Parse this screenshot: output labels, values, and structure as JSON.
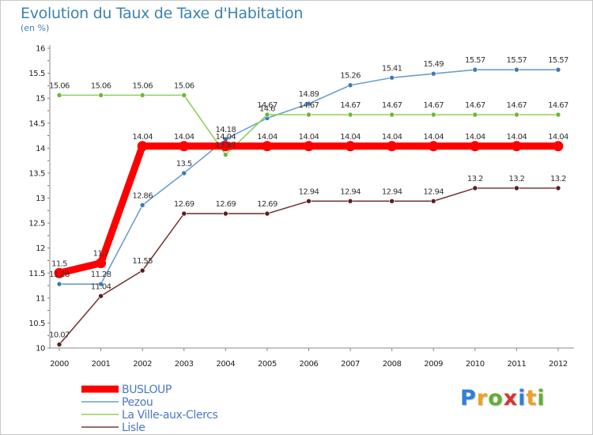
{
  "page": {
    "title": "Evolution du Taux de Taxe d'Habitation",
    "subtitle": "(en %)"
  },
  "chart_data": {
    "type": "line",
    "x": [
      "2000",
      "2001",
      "2002",
      "2003",
      "2004",
      "2005",
      "2006",
      "2007",
      "2008",
      "2009",
      "2010",
      "2011",
      "2012"
    ],
    "ylim": [
      10,
      16
    ],
    "yticks": [
      "10",
      "10.5",
      "11",
      "11.5",
      "12",
      "12.5",
      "13",
      "13.5",
      "14",
      "14.5",
      "15",
      "15.5",
      "16"
    ],
    "grid": false,
    "legend_placement": "bottom-left",
    "series": [
      {
        "name": "Pezou",
        "color": "#6a9fd0",
        "marker": "#3a7ab8",
        "values": [
          11.28,
          11.28,
          12.86,
          13.5,
          14.18,
          14.6,
          14.89,
          15.26,
          15.41,
          15.49,
          15.57,
          15.57,
          15.57
        ],
        "labels": [
          "11.28",
          "11.28",
          "12.86",
          "13.5",
          "14.18",
          "14.6",
          "14.89",
          "15.26",
          "15.41",
          "15.49",
          "15.57",
          "15.57",
          "15.57"
        ]
      },
      {
        "name": "La Ville-aux-Clercs",
        "color": "#8fd05a",
        "marker": "#6ab83a",
        "values": [
          15.06,
          15.06,
          15.06,
          15.06,
          13.87,
          14.67,
          14.67,
          14.67,
          14.67,
          14.67,
          14.67,
          14.67,
          14.67
        ],
        "labels": [
          "15.06",
          "15.06",
          "15.06",
          "15.06",
          "13.87",
          "14.67",
          "14.67",
          "14.67",
          "14.67",
          "14.67",
          "14.67",
          "14.67",
          "14.67"
        ]
      },
      {
        "name": "Lisle",
        "color": "#7a3a3a",
        "marker": "#5a1e1e",
        "values": [
          10.07,
          11.04,
          11.55,
          12.69,
          12.69,
          12.69,
          12.94,
          12.94,
          12.94,
          12.94,
          13.2,
          13.2,
          13.2
        ],
        "labels": [
          "10.07",
          "11.04",
          "11.55",
          "12.69",
          "12.69",
          "12.69",
          "12.94",
          "12.94",
          "12.94",
          "12.94",
          "13.2",
          "13.2",
          "13.2"
        ]
      },
      {
        "name": "BUSLOUP",
        "color": "#ff0000",
        "marker": "#ff0000",
        "thick": true,
        "values": [
          11.5,
          11.7,
          14.04,
          14.04,
          14.04,
          14.04,
          14.04,
          14.04,
          14.04,
          14.04,
          14.04,
          14.04,
          14.04
        ],
        "labels": [
          "11.5",
          "11.7",
          "14.04",
          "14.04",
          "14.04",
          "14.04",
          "14.04",
          "14.04",
          "14.04",
          "14.04",
          "14.04",
          "14.04",
          "14.04"
        ]
      }
    ],
    "legend_order": [
      "BUSLOUP",
      "Pezou",
      "La Ville-aux-Clercs",
      "Lisle"
    ]
  },
  "logo": {
    "letters": [
      "P",
      "r",
      "o",
      "x",
      "i",
      "t",
      "i"
    ],
    "colors": [
      "#2f7fd8",
      "#f0a020",
      "#60b030",
      "#e03030",
      "#2f7fd8",
      "#f0a020",
      "#60b030"
    ]
  }
}
